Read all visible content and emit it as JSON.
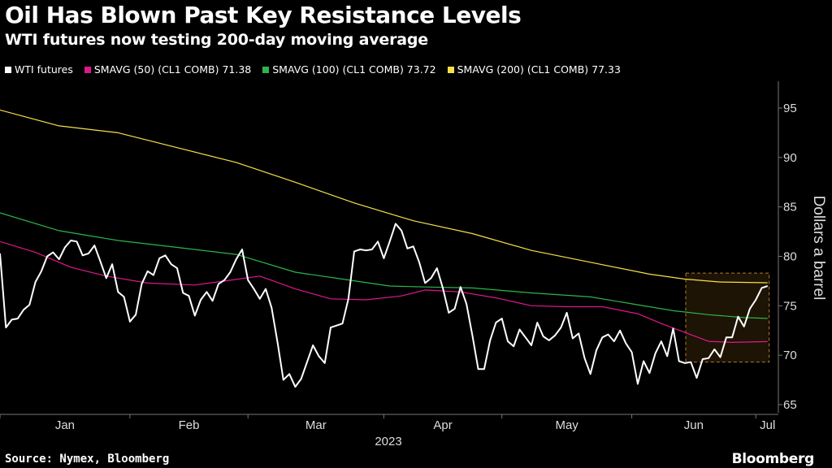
{
  "header": {
    "title": "Oil Has Blown Past Key Resistance Levels",
    "subtitle": "WTI futures now testing 200-day moving average"
  },
  "legend": [
    {
      "label": "WTI futures",
      "color": "#ffffff"
    },
    {
      "label": "SMAVG (50) (CL1 COMB) 71.38",
      "color": "#e0178c"
    },
    {
      "label": "SMAVG (100) (CL1 COMB) 73.72",
      "color": "#2db54a"
    },
    {
      "label": "SMAVG (200) (CL1 COMB) 77.33",
      "color": "#f5e04a"
    }
  ],
  "footer": {
    "source": "Source: Nymex, Bloomberg",
    "brand": "Bloomberg"
  },
  "chart_data": {
    "type": "line",
    "ylabel": "Dollars a barrel",
    "ylim": [
      64,
      100
    ],
    "yticks": [
      65,
      70,
      75,
      80,
      85,
      90,
      95
    ],
    "xlabel": "",
    "x_tick_labels": [
      "Jan",
      "Feb",
      "Mar",
      "Apr",
      "May",
      "Jun",
      "Jul"
    ],
    "year_label": "2023",
    "highlight_box": {
      "x_range": [
        116,
        126
      ],
      "y_range": [
        69.3,
        78.3
      ]
    },
    "series": [
      {
        "name": "WTI futures",
        "color": "#ffffff",
        "points": [
          [
            0,
            80.3
          ],
          [
            1,
            72.8
          ],
          [
            2,
            73.6
          ],
          [
            3,
            73.7
          ],
          [
            4,
            74.6
          ],
          [
            5,
            75.1
          ],
          [
            6,
            77.4
          ],
          [
            7,
            78.5
          ],
          [
            8,
            80.0
          ],
          [
            9,
            80.4
          ],
          [
            10,
            79.7
          ],
          [
            11,
            80.9
          ],
          [
            12,
            81.6
          ],
          [
            13,
            81.5
          ],
          [
            14,
            80.1
          ],
          [
            15,
            80.3
          ],
          [
            16,
            81.1
          ],
          [
            17,
            79.5
          ],
          [
            18,
            77.8
          ],
          [
            19,
            79.2
          ],
          [
            20,
            76.4
          ],
          [
            21,
            75.9
          ],
          [
            22,
            73.4
          ],
          [
            23,
            74.1
          ],
          [
            24,
            77.2
          ],
          [
            25,
            78.5
          ],
          [
            26,
            78.1
          ],
          [
            27,
            79.8
          ],
          [
            28,
            80.1
          ],
          [
            29,
            79.2
          ],
          [
            30,
            78.8
          ],
          [
            31,
            76.3
          ],
          [
            32,
            76.0
          ],
          [
            33,
            74.0
          ],
          [
            34,
            75.6
          ],
          [
            35,
            76.4
          ],
          [
            36,
            75.5
          ],
          [
            37,
            77.2
          ],
          [
            38,
            77.6
          ],
          [
            39,
            78.4
          ],
          [
            40,
            79.7
          ],
          [
            41,
            80.7
          ],
          [
            42,
            77.6
          ],
          [
            43,
            76.7
          ],
          [
            44,
            75.7
          ],
          [
            45,
            76.7
          ],
          [
            46,
            74.8
          ],
          [
            47,
            71.3
          ],
          [
            48,
            67.5
          ],
          [
            49,
            68.1
          ],
          [
            50,
            66.8
          ],
          [
            51,
            67.6
          ],
          [
            52,
            69.3
          ],
          [
            53,
            71.0
          ],
          [
            54,
            69.9
          ],
          [
            55,
            69.2
          ],
          [
            56,
            72.8
          ],
          [
            57,
            73.0
          ],
          [
            58,
            73.2
          ],
          [
            59,
            75.7
          ],
          [
            60,
            80.5
          ],
          [
            61,
            80.7
          ],
          [
            62,
            80.6
          ],
          [
            63,
            80.7
          ],
          [
            64,
            81.5
          ],
          [
            65,
            79.8
          ],
          [
            66,
            81.5
          ],
          [
            67,
            83.3
          ],
          [
            68,
            82.6
          ],
          [
            69,
            80.8
          ],
          [
            70,
            81.0
          ],
          [
            71,
            79.4
          ],
          [
            72,
            77.3
          ],
          [
            73,
            77.8
          ],
          [
            74,
            78.8
          ],
          [
            75,
            76.8
          ],
          [
            76,
            74.3
          ],
          [
            77,
            74.7
          ],
          [
            78,
            76.9
          ],
          [
            79,
            75.2
          ],
          [
            80,
            72.0
          ],
          [
            81,
            68.6
          ],
          [
            82,
            68.6
          ],
          [
            83,
            71.5
          ],
          [
            84,
            73.3
          ],
          [
            85,
            73.7
          ],
          [
            86,
            71.4
          ],
          [
            87,
            70.9
          ],
          [
            88,
            72.6
          ],
          [
            89,
            71.8
          ],
          [
            90,
            71.0
          ],
          [
            91,
            73.3
          ],
          [
            92,
            71.9
          ],
          [
            93,
            71.5
          ],
          [
            94,
            72.0
          ],
          [
            95,
            72.8
          ],
          [
            96,
            74.3
          ],
          [
            97,
            71.7
          ],
          [
            98,
            72.2
          ],
          [
            99,
            69.7
          ],
          [
            100,
            68.1
          ],
          [
            101,
            70.5
          ],
          [
            102,
            71.8
          ],
          [
            103,
            72.1
          ],
          [
            104,
            71.4
          ],
          [
            105,
            72.5
          ],
          [
            106,
            71.2
          ],
          [
            107,
            70.3
          ],
          [
            108,
            67.1
          ],
          [
            109,
            69.4
          ],
          [
            110,
            68.2
          ],
          [
            111,
            70.2
          ],
          [
            112,
            71.4
          ],
          [
            113,
            69.9
          ],
          [
            114,
            72.7
          ],
          [
            115,
            69.4
          ],
          [
            116,
            69.2
          ],
          [
            117,
            69.3
          ],
          [
            118,
            67.7
          ],
          [
            119,
            69.6
          ],
          [
            120,
            69.7
          ],
          [
            121,
            70.6
          ],
          [
            122,
            69.8
          ],
          [
            123,
            71.8
          ],
          [
            124,
            71.8
          ],
          [
            125,
            73.9
          ],
          [
            126,
            72.9
          ],
          [
            127,
            74.7
          ],
          [
            128,
            75.6
          ],
          [
            129,
            76.8
          ],
          [
            130,
            77.0
          ]
        ]
      },
      {
        "name": "SMAVG (50) (CL1 COMB) 71.38",
        "color": "#e0178c",
        "points": [
          [
            0,
            81.5
          ],
          [
            6,
            80.4
          ],
          [
            12,
            78.9
          ],
          [
            18,
            78.0
          ],
          [
            25,
            77.3
          ],
          [
            33,
            77.1
          ],
          [
            38,
            77.5
          ],
          [
            44,
            78.0
          ],
          [
            50,
            76.7
          ],
          [
            56,
            75.7
          ],
          [
            62,
            75.6
          ],
          [
            68,
            76.0
          ],
          [
            72,
            76.6
          ],
          [
            78,
            76.4
          ],
          [
            84,
            75.8
          ],
          [
            90,
            75.0
          ],
          [
            96,
            74.9
          ],
          [
            102,
            74.9
          ],
          [
            108,
            74.2
          ],
          [
            112,
            73.2
          ],
          [
            116,
            72.3
          ],
          [
            120,
            71.4
          ],
          [
            124,
            71.3
          ],
          [
            130,
            71.38
          ]
        ]
      },
      {
        "name": "SMAVG (100) (CL1 COMB) 73.72",
        "color": "#2db54a",
        "points": [
          [
            0,
            84.4
          ],
          [
            10,
            82.6
          ],
          [
            20,
            81.6
          ],
          [
            30,
            80.9
          ],
          [
            40,
            80.2
          ],
          [
            50,
            78.4
          ],
          [
            58,
            77.7
          ],
          [
            66,
            77.0
          ],
          [
            72,
            76.9
          ],
          [
            80,
            76.8
          ],
          [
            90,
            76.3
          ],
          [
            100,
            75.9
          ],
          [
            108,
            75.1
          ],
          [
            114,
            74.5
          ],
          [
            120,
            74.1
          ],
          [
            126,
            73.8
          ],
          [
            130,
            73.72
          ]
        ]
      },
      {
        "name": "SMAVG (200) (CL1 COMB) 77.33",
        "color": "#f5e04a",
        "points": [
          [
            0,
            94.8
          ],
          [
            5,
            94.0
          ],
          [
            10,
            93.2
          ],
          [
            20,
            92.5
          ],
          [
            30,
            91.0
          ],
          [
            40,
            89.5
          ],
          [
            50,
            87.5
          ],
          [
            60,
            85.4
          ],
          [
            65,
            84.5
          ],
          [
            70,
            83.6
          ],
          [
            80,
            82.3
          ],
          [
            90,
            80.6
          ],
          [
            100,
            79.4
          ],
          [
            110,
            78.2
          ],
          [
            116,
            77.7
          ],
          [
            122,
            77.4
          ],
          [
            130,
            77.33
          ]
        ]
      }
    ]
  }
}
